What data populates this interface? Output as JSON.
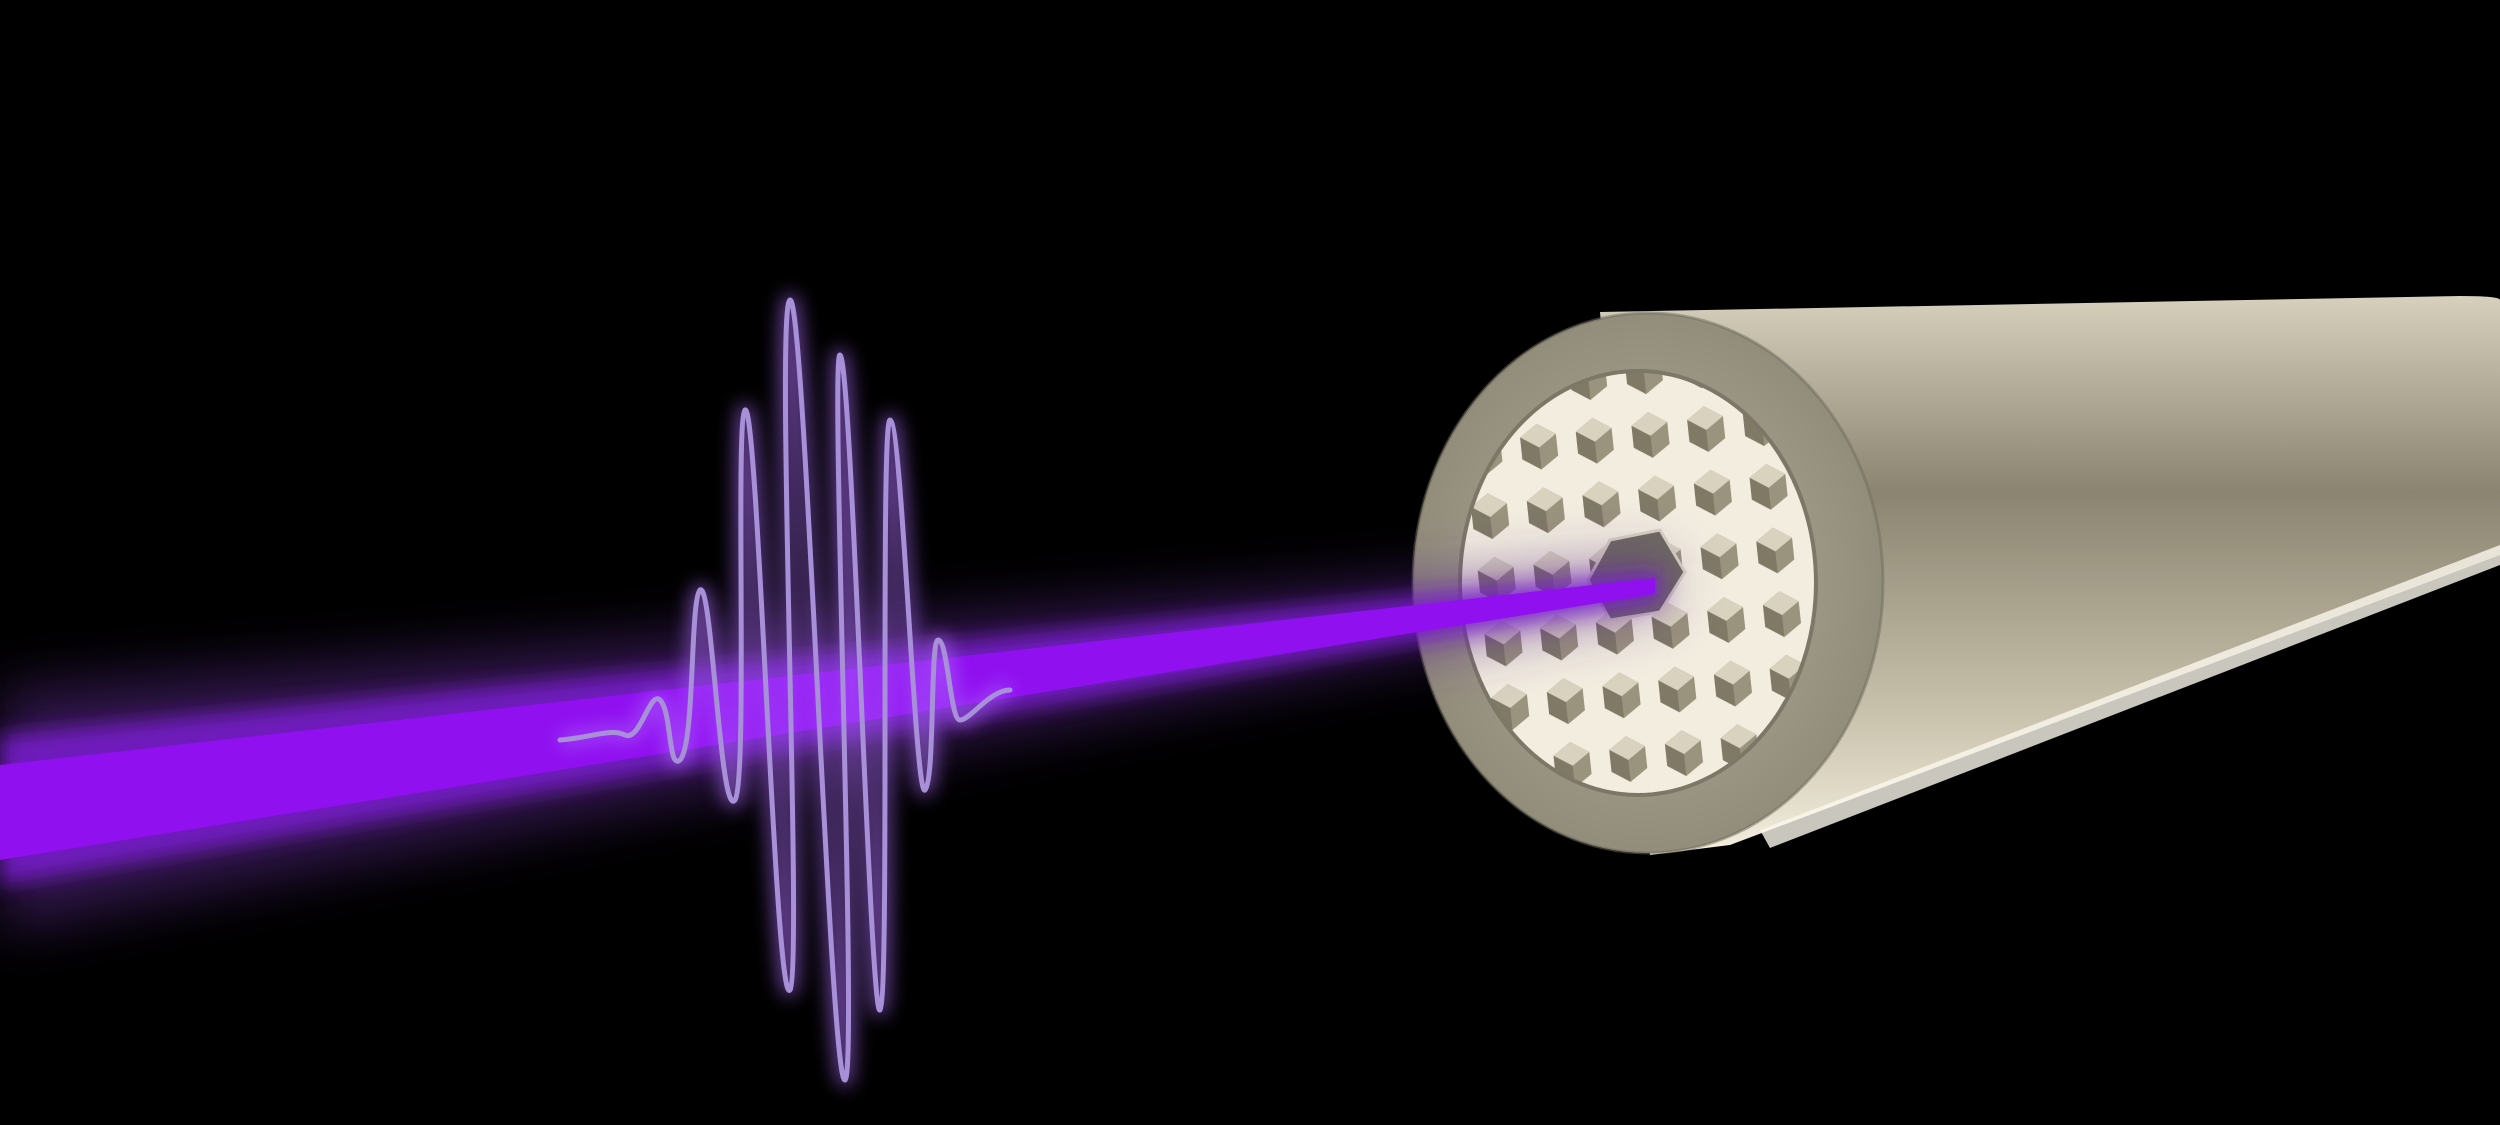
{
  "scene": {
    "background_color": "#000000",
    "beam": {
      "core_color": "#9010f0",
      "glow_color": "#7a1ad0",
      "haze_color": "#5a2a8a"
    },
    "pulse": {
      "stroke_color": "#a890d8",
      "glow_color": "#b070ff"
    },
    "fiber": {
      "jacket_face_color": "#9c9888",
      "jacket_body_light": "#e8e2d0",
      "jacket_body_mid": "#8a8470",
      "jacket_body_dark": "#c9c2ad",
      "cladding_color": "#f2eddf",
      "lattice_shadow_color": "#8f8872",
      "core_color": "#6e6a60"
    }
  }
}
